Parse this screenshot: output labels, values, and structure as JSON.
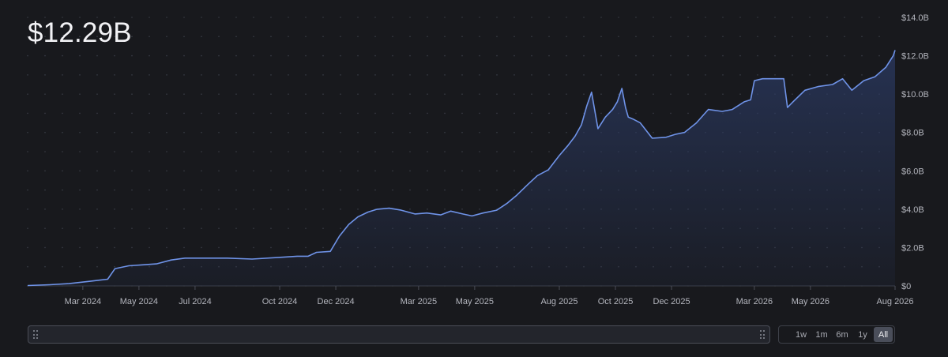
{
  "header": {
    "value": "$12.29B"
  },
  "colors": {
    "background": "#18191d",
    "line": "#6f93e8",
    "area_top": "#2b3a63",
    "grid_dot": "#3a3d46",
    "tick_text": "#b3b5bd"
  },
  "range_selector": {
    "buttons": [
      {
        "label": "1w",
        "active": false
      },
      {
        "label": "1m",
        "active": false
      },
      {
        "label": "6m",
        "active": false
      },
      {
        "label": "1y",
        "active": false
      },
      {
        "label": "All",
        "active": true
      }
    ]
  },
  "chart_data": {
    "type": "area",
    "title": "",
    "xlabel": "",
    "ylabel": "",
    "y_axis_position": "right",
    "grid": "dotted",
    "legend": "none",
    "ylim": [
      0,
      14
    ],
    "xlim": [
      "2024-01-01",
      "2026-08-01"
    ],
    "y_unit": "$B",
    "y_ticks": [
      {
        "value": 0,
        "label": "$0"
      },
      {
        "value": 2,
        "label": "$2.0B"
      },
      {
        "value": 4,
        "label": "$4.0B"
      },
      {
        "value": 6,
        "label": "$6.0B"
      },
      {
        "value": 8,
        "label": "$8.0B"
      },
      {
        "value": 10,
        "label": "$10.0B"
      },
      {
        "value": 12,
        "label": "$12.0B"
      },
      {
        "value": 14,
        "label": "$14.0B"
      }
    ],
    "x_ticks": [
      {
        "date": "2024-03-01",
        "label": "Mar 2024"
      },
      {
        "date": "2024-05-01",
        "label": "May 2024"
      },
      {
        "date": "2024-07-01",
        "label": "Jul 2024"
      },
      {
        "date": "2024-10-01",
        "label": "Oct 2024"
      },
      {
        "date": "2024-12-01",
        "label": "Dec 2024"
      },
      {
        "date": "2025-03-01",
        "label": "Mar 2025"
      },
      {
        "date": "2025-05-01",
        "label": "May 2025"
      },
      {
        "date": "2025-08-01",
        "label": "Aug 2025"
      },
      {
        "date": "2025-10-01",
        "label": "Oct 2025"
      },
      {
        "date": "2025-12-01",
        "label": "Dec 2025"
      },
      {
        "date": "2026-03-01",
        "label": "Mar 2026"
      },
      {
        "date": "2026-05-01",
        "label": "May 2026"
      },
      {
        "date": "2026-08-01",
        "label": "Aug 2026"
      }
    ],
    "series": [
      {
        "x": [
          "2024-01-01",
          "2024-01-25",
          "2024-02-15",
          "2024-03-10",
          "2024-03-28",
          "2024-04-05",
          "2024-04-20",
          "2024-05-05",
          "2024-05-20",
          "2024-06-05",
          "2024-06-20",
          "2024-07-10",
          "2024-08-05",
          "2024-09-01",
          "2024-10-05",
          "2024-10-20",
          "2024-11-01",
          "2024-11-10",
          "2024-11-25",
          "2024-12-05",
          "2024-12-15",
          "2024-12-25",
          "2025-01-05",
          "2025-01-15",
          "2025-01-28",
          "2025-02-10",
          "2025-02-25",
          "2025-03-10",
          "2025-03-25",
          "2025-04-05",
          "2025-04-18",
          "2025-04-28",
          "2025-05-10",
          "2025-05-25",
          "2025-06-05",
          "2025-06-15",
          "2025-06-28",
          "2025-07-08",
          "2025-07-20",
          "2025-08-01",
          "2025-08-10",
          "2025-08-18",
          "2025-08-25",
          "2025-08-31",
          "2025-09-05",
          "2025-09-12",
          "2025-09-20",
          "2025-09-28",
          "2025-10-03",
          "2025-10-08",
          "2025-10-12",
          "2025-10-15",
          "2025-10-20",
          "2025-10-28",
          "2025-11-10",
          "2025-11-25",
          "2025-12-05",
          "2025-12-15",
          "2025-12-28",
          "2026-01-10",
          "2026-01-25",
          "2026-02-05",
          "2026-02-18",
          "2026-02-25",
          "2026-03-01",
          "2026-03-10",
          "2026-03-25",
          "2026-04-02",
          "2026-04-06",
          "2026-04-12",
          "2026-04-25",
          "2026-05-10",
          "2026-05-25",
          "2026-06-05",
          "2026-06-15",
          "2026-06-28",
          "2026-07-10",
          "2026-07-22",
          "2026-07-30",
          "2026-08-01"
        ],
        "y": [
          0.02,
          0.06,
          0.12,
          0.25,
          0.35,
          0.9,
          1.05,
          1.1,
          1.15,
          1.35,
          1.45,
          1.45,
          1.45,
          1.4,
          1.5,
          1.55,
          1.55,
          1.75,
          1.8,
          2.6,
          3.2,
          3.6,
          3.85,
          4.0,
          4.05,
          3.95,
          3.75,
          3.8,
          3.7,
          3.9,
          3.75,
          3.65,
          3.8,
          3.95,
          4.3,
          4.7,
          5.3,
          5.75,
          6.05,
          6.8,
          7.3,
          7.8,
          8.4,
          9.4,
          10.1,
          8.2,
          8.8,
          9.2,
          9.6,
          10.3,
          9.3,
          8.8,
          8.7,
          8.5,
          7.7,
          7.75,
          7.9,
          8.0,
          8.5,
          9.2,
          9.1,
          9.2,
          9.6,
          9.7,
          10.7,
          10.8,
          10.8,
          10.8,
          9.3,
          9.6,
          10.2,
          10.4,
          10.5,
          10.8,
          10.2,
          10.7,
          10.9,
          11.4,
          12.0,
          12.29
        ]
      }
    ]
  }
}
